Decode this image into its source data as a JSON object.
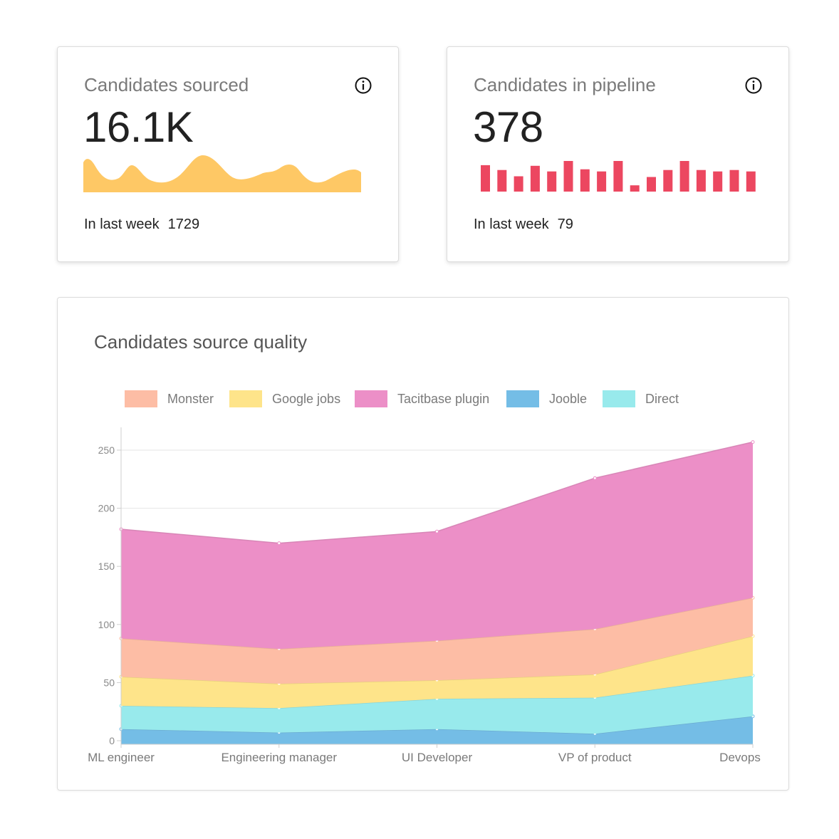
{
  "kpi_sourced": {
    "title": "Candidates sourced",
    "value": "16.1K",
    "footer_label": "In last week",
    "footer_value": "1729",
    "accent": "#fec865",
    "icon": "info-icon"
  },
  "kpi_pipeline": {
    "title": "Candidates in pipeline",
    "value": "378",
    "footer_label": "In last week",
    "footer_value": "79",
    "accent": "#ec4760",
    "icon": "info-icon",
    "bars": [
      38,
      31,
      22,
      37,
      29,
      44,
      32,
      29,
      44,
      9,
      21,
      31,
      44,
      31,
      29,
      31,
      29
    ]
  },
  "chart_data": {
    "type": "area",
    "title": "Candidates source quality",
    "stacked": true,
    "categories": [
      "ML engineer",
      "Engineering manager",
      "UI Developer",
      "VP of product",
      "Devops"
    ],
    "ylim": [
      0,
      270
    ],
    "yticks": [
      0,
      50,
      100,
      150,
      200,
      250
    ],
    "grid": true,
    "legend_position": "top",
    "series": [
      {
        "name": "Jooble",
        "color": "#74bde6",
        "values": [
          10,
          7,
          10,
          6,
          21
        ]
      },
      {
        "name": "Direct",
        "color": "#98eaec",
        "values": [
          20,
          21,
          26,
          31,
          35
        ]
      },
      {
        "name": "Google jobs",
        "color": "#fee48a",
        "values": [
          25,
          21,
          16,
          20,
          34
        ]
      },
      {
        "name": "Monster",
        "color": "#fdbda5",
        "values": [
          33,
          30,
          34,
          39,
          33
        ]
      },
      {
        "name": "Tacitbase plugin",
        "color": "#ec8fc7",
        "values": [
          94,
          91,
          94,
          130,
          134
        ]
      }
    ],
    "legend_order": [
      "Monster",
      "Google jobs",
      "Tacitbase plugin",
      "Jooble",
      "Direct"
    ]
  }
}
